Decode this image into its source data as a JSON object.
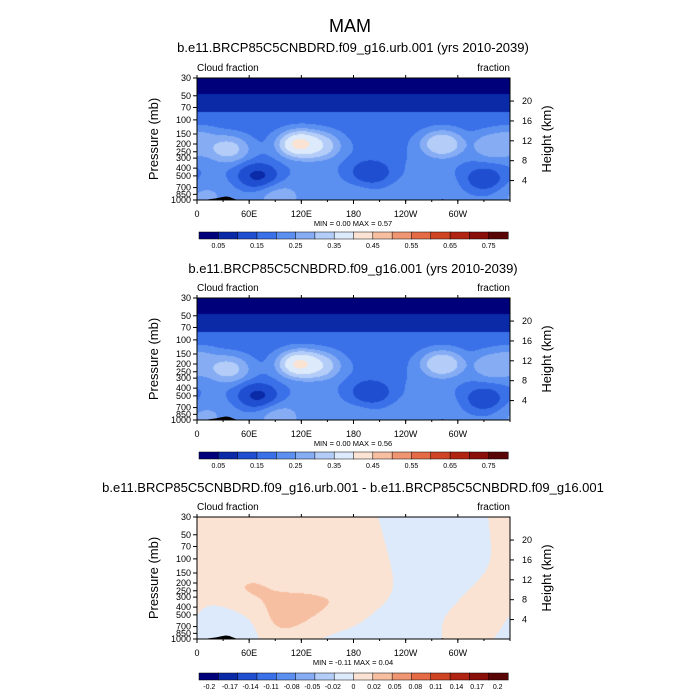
{
  "page_title": "MAM",
  "chart_data": [
    {
      "type": "heatmap",
      "title": "b.e11.BRCP85C5CNBDRD.f09_g16.urb.001 (yrs 2010-2039)",
      "left_label": "Cloud fraction",
      "right_label": "fraction",
      "ylabel": "Pressure (mb)",
      "ylabel_right": "Height (km)",
      "x_ticks": [
        "0",
        "60E",
        "120E",
        "180",
        "120W",
        "60W"
      ],
      "x_tick_lon": [
        0,
        60,
        120,
        180,
        240,
        300
      ],
      "xlim": [
        0,
        360
      ],
      "y_ticks": [
        "30",
        "50",
        "70",
        "100",
        "150",
        "200",
        "250",
        "300",
        "400",
        "500",
        "700",
        "850",
        "1000"
      ],
      "y_tick_values": [
        30,
        50,
        70,
        100,
        150,
        200,
        250,
        300,
        400,
        500,
        700,
        850,
        1000
      ],
      "ylim": [
        1000,
        30
      ],
      "y_scale": "log",
      "height_ticks": [
        "20",
        "16",
        "12",
        "8",
        "4"
      ],
      "height_tick_values": [
        20,
        16,
        12,
        8,
        4
      ],
      "stats": "MIN =   0.00  MAX =   0.57",
      "colorbar_labels": [
        "0.05",
        "0.15",
        "0.25",
        "0.35",
        "0.45",
        "0.55",
        "0.65",
        "0.75"
      ],
      "colorbar_colors": [
        "#00007a",
        "#0a2aa8",
        "#1f4fd0",
        "#3a70e8",
        "#5b8ff0",
        "#86adf4",
        "#b3cdf8",
        "#dceafb",
        "#fbe3d3",
        "#f7bfa1",
        "#f09571",
        "#e56a46",
        "#cf4423",
        "#b22412",
        "#8a0f0a",
        "#5a0505"
      ],
      "value_range": [
        0,
        0.8
      ],
      "features": [
        {
          "lon": 3,
          "p": 190,
          "value": 0.33
        },
        {
          "lon": 35,
          "p": 230,
          "value": 0.4
        },
        {
          "lon": 118,
          "p": 200,
          "value": 0.55
        },
        {
          "lon": 140,
          "p": 210,
          "value": 0.42
        },
        {
          "lon": 282,
          "p": 200,
          "value": 0.44
        },
        {
          "lon": 340,
          "p": 210,
          "value": 0.34
        },
        {
          "lon": 282,
          "p": 700,
          "value": 0.22
        },
        {
          "lon": 10,
          "p": 900,
          "value": 0.28
        },
        {
          "lon": 245,
          "p": 950,
          "value": 0.25
        },
        {
          "lon": 180,
          "p": 970,
          "value": 0.24
        },
        {
          "lon": 95,
          "p": 900,
          "value": 0.3
        },
        {
          "lon": 70,
          "p": 500,
          "value": 0.02
        },
        {
          "lon": 200,
          "p": 450,
          "value": 0.05
        },
        {
          "lon": 330,
          "p": 550,
          "value": 0.06
        }
      ]
    },
    {
      "type": "heatmap",
      "title": "b.e11.BRCP85C5CNBDRD.f09_g16.001 (yrs 2010-2039)",
      "left_label": "Cloud fraction",
      "right_label": "fraction",
      "ylabel": "Pressure (mb)",
      "ylabel_right": "Height (km)",
      "x_ticks": [
        "0",
        "60E",
        "120E",
        "180",
        "120W",
        "60W"
      ],
      "x_tick_lon": [
        0,
        60,
        120,
        180,
        240,
        300
      ],
      "xlim": [
        0,
        360
      ],
      "y_ticks": [
        "30",
        "50",
        "70",
        "100",
        "150",
        "200",
        "250",
        "300",
        "400",
        "500",
        "700",
        "850",
        "1000"
      ],
      "y_tick_values": [
        30,
        50,
        70,
        100,
        150,
        200,
        250,
        300,
        400,
        500,
        700,
        850,
        1000
      ],
      "ylim": [
        1000,
        30
      ],
      "y_scale": "log",
      "height_ticks": [
        "20",
        "16",
        "12",
        "8",
        "4"
      ],
      "height_tick_values": [
        20,
        16,
        12,
        8,
        4
      ],
      "stats": "MIN =   0.00  MAX =   0.56",
      "colorbar_labels": [
        "0.05",
        "0.15",
        "0.25",
        "0.35",
        "0.45",
        "0.55",
        "0.65",
        "0.75"
      ],
      "colorbar_colors": [
        "#00007a",
        "#0a2aa8",
        "#1f4fd0",
        "#3a70e8",
        "#5b8ff0",
        "#86adf4",
        "#b3cdf8",
        "#dceafb",
        "#fbe3d3",
        "#f7bfa1",
        "#f09571",
        "#e56a46",
        "#cf4423",
        "#b22412",
        "#8a0f0a",
        "#5a0505"
      ],
      "value_range": [
        0,
        0.8
      ],
      "features": [
        {
          "lon": 3,
          "p": 190,
          "value": 0.33
        },
        {
          "lon": 35,
          "p": 230,
          "value": 0.4
        },
        {
          "lon": 118,
          "p": 200,
          "value": 0.54
        },
        {
          "lon": 140,
          "p": 210,
          "value": 0.42
        },
        {
          "lon": 282,
          "p": 200,
          "value": 0.44
        },
        {
          "lon": 340,
          "p": 210,
          "value": 0.34
        },
        {
          "lon": 282,
          "p": 700,
          "value": 0.22
        },
        {
          "lon": 10,
          "p": 900,
          "value": 0.28
        },
        {
          "lon": 245,
          "p": 950,
          "value": 0.25
        },
        {
          "lon": 180,
          "p": 970,
          "value": 0.24
        },
        {
          "lon": 95,
          "p": 900,
          "value": 0.3
        },
        {
          "lon": 70,
          "p": 500,
          "value": 0.02
        },
        {
          "lon": 200,
          "p": 450,
          "value": 0.05
        },
        {
          "lon": 330,
          "p": 550,
          "value": 0.06
        }
      ]
    },
    {
      "type": "heatmap",
      "title": "b.e11.BRCP85C5CNBDRD.f09_g16.urb.001 - b.e11.BRCP85C5CNBDRD.f09_g16.001",
      "left_label": "Cloud fraction",
      "right_label": "fraction",
      "ylabel": "Pressure (mb)",
      "ylabel_right": "Height (km)",
      "x_ticks": [
        "0",
        "60E",
        "120E",
        "180",
        "120W",
        "60W"
      ],
      "x_tick_lon": [
        0,
        60,
        120,
        180,
        240,
        300
      ],
      "xlim": [
        0,
        360
      ],
      "y_ticks": [
        "30",
        "50",
        "70",
        "100",
        "150",
        "200",
        "250",
        "300",
        "400",
        "500",
        "700",
        "850",
        "1000"
      ],
      "y_tick_values": [
        30,
        50,
        70,
        100,
        150,
        200,
        250,
        300,
        400,
        500,
        700,
        850,
        1000
      ],
      "ylim": [
        1000,
        30
      ],
      "y_scale": "log",
      "height_ticks": [
        "20",
        "16",
        "12",
        "8",
        "4"
      ],
      "height_tick_values": [
        20,
        16,
        12,
        8,
        4
      ],
      "stats": "MIN =  -0.11  MAX =   0.04",
      "colorbar_labels": [
        "-0.2",
        "-0.17",
        "-0.14",
        "-0.11",
        "-0.08",
        "-0.05",
        "-0.02",
        "0",
        "0.02",
        "0.05",
        "0.08",
        "0.11",
        "0.14",
        "0.17",
        "0.2"
      ],
      "colorbar_colors": [
        "#00007a",
        "#0a2aa8",
        "#1f4fd0",
        "#3a70e8",
        "#5b8ff0",
        "#86adf4",
        "#b3cdf8",
        "#dceafb",
        "#fbe3d3",
        "#f7bfa1",
        "#f09571",
        "#e56a46",
        "#cf4423",
        "#b22412",
        "#8a0f0a",
        "#5a0505"
      ],
      "value_range": [
        -0.22,
        0.22
      ],
      "features": [
        {
          "lon": 120,
          "p": 550,
          "value": 0.03
        },
        {
          "lon": 60,
          "p": 250,
          "value": 0.02
        },
        {
          "lon": 180,
          "p": 400,
          "value": 0.02
        },
        {
          "lon": 330,
          "p": 500,
          "value": 0.02
        },
        {
          "lon": 20,
          "p": 700,
          "value": -0.02
        },
        {
          "lon": 220,
          "p": 650,
          "value": -0.02
        },
        {
          "lon": 150,
          "p": 900,
          "value": -0.01
        },
        {
          "lon": 280,
          "p": 300,
          "value": -0.01
        }
      ]
    }
  ]
}
